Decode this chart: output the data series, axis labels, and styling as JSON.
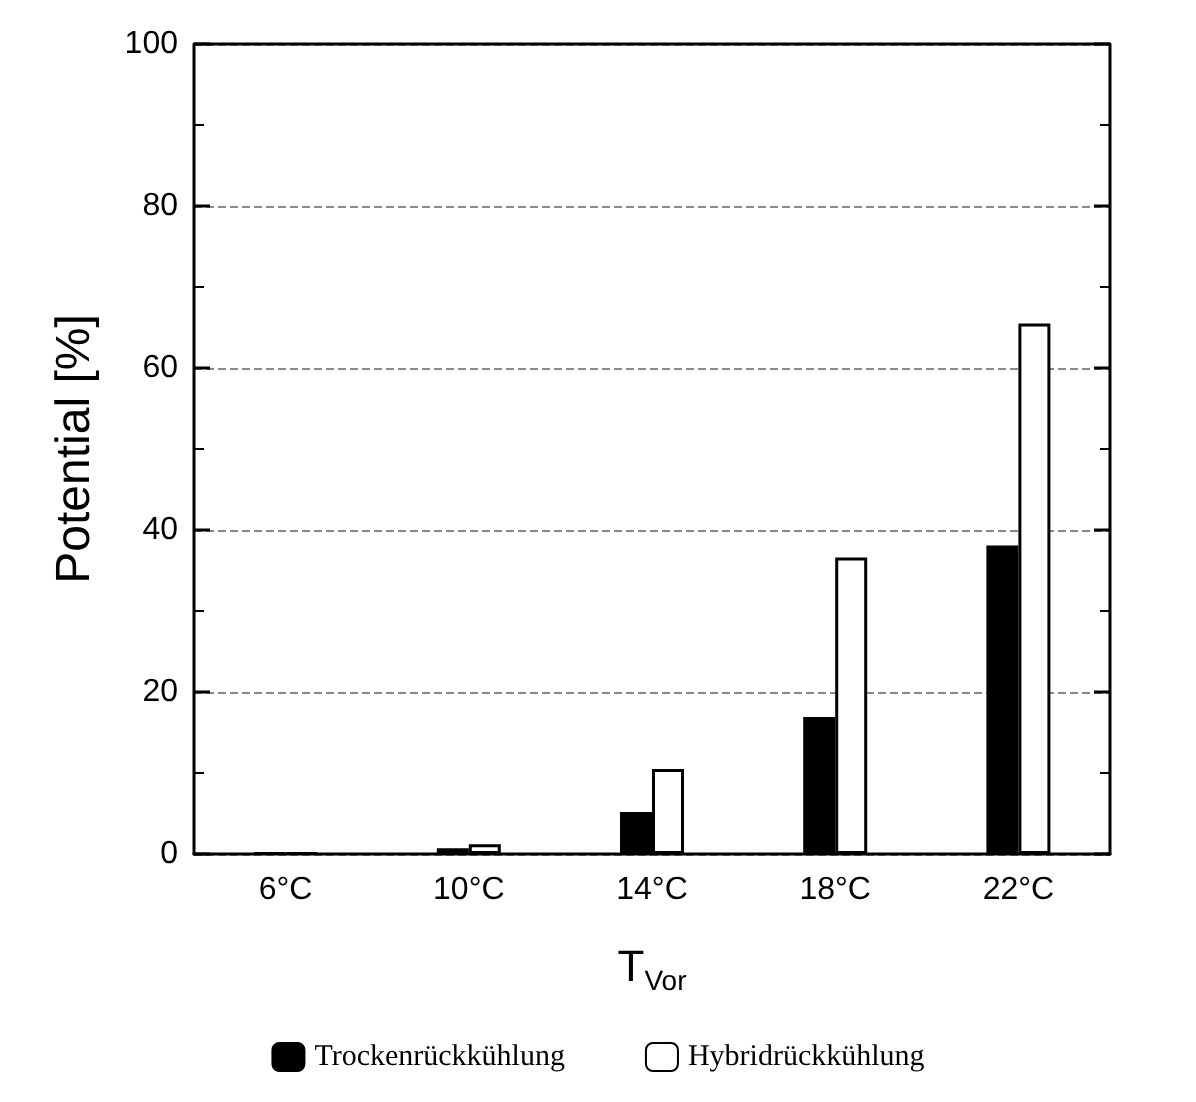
{
  "chart_data": {
    "type": "bar",
    "xlabel": "T$_{Vor}$",
    "ylabel": "Potential [%]",
    "categories": [
      "6°C",
      "10°C",
      "14°C",
      "18°C",
      "22°C"
    ],
    "series": [
      {
        "name": "Trockenrückkühlung",
        "color": "#000000",
        "values": [
          0.1,
          0.7,
          5.2,
          16.9,
          38.1
        ]
      },
      {
        "name": "Hybridrückkühlung",
        "color": "#ffffff",
        "values": [
          0.1,
          1.2,
          10.5,
          36.6,
          65.5
        ]
      }
    ],
    "ylim": [
      0,
      100
    ],
    "yticks": [
      0,
      20,
      40,
      60,
      80,
      100
    ],
    "grid": "y",
    "legend": "bottom"
  }
}
